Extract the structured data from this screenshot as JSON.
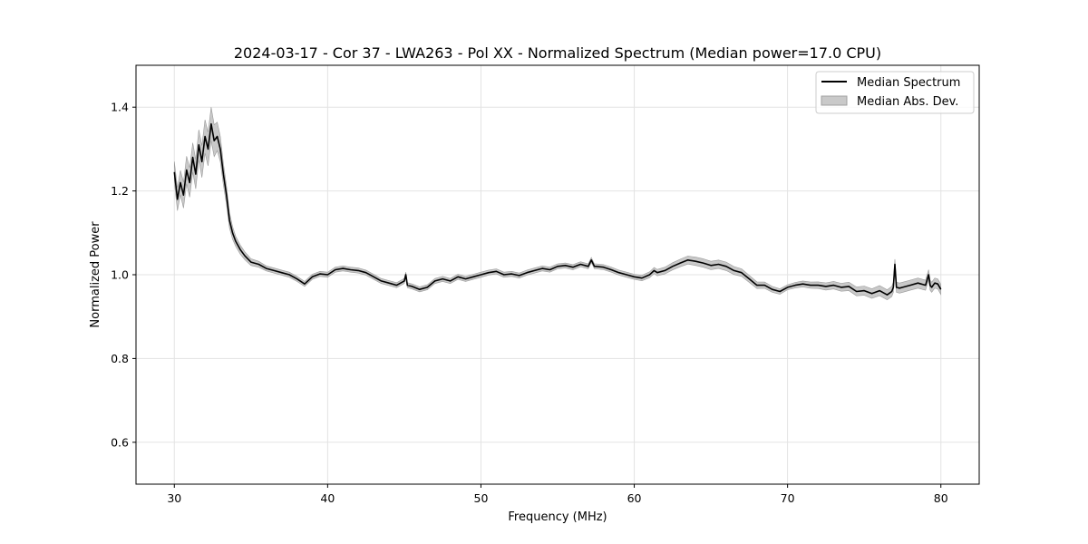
{
  "chart_data": {
    "type": "line",
    "title": "2024-03-17 - Cor 37 - LWA263 - Pol XX - Normalized Spectrum (Median power=17.0 CPU)",
    "xlabel": "Frequency (MHz)",
    "ylabel": "Normalized Power",
    "xlim": [
      27.5,
      82.5
    ],
    "ylim": [
      0.5,
      1.5
    ],
    "xticks": [
      30,
      40,
      50,
      60,
      70,
      80
    ],
    "yticks": [
      0.6,
      0.8,
      1.0,
      1.2,
      1.4
    ],
    "xtick_labels": [
      "30",
      "40",
      "50",
      "60",
      "70",
      "80"
    ],
    "ytick_labels": [
      "0.6",
      "0.8",
      "1.0",
      "1.2",
      "1.4"
    ],
    "grid": true,
    "legend_position": "top-right",
    "legend": [
      "Median Spectrum",
      "Median Abs. Dev."
    ],
    "series": [
      {
        "name": "Median Spectrum",
        "color": "#000000",
        "x": [
          30.0,
          30.2,
          30.4,
          30.6,
          30.8,
          31.0,
          31.2,
          31.4,
          31.6,
          31.8,
          32.0,
          32.2,
          32.4,
          32.6,
          32.8,
          33.0,
          33.2,
          33.4,
          33.6,
          33.8,
          34.0,
          34.3,
          34.6,
          35.0,
          35.5,
          36.0,
          36.5,
          37.0,
          37.5,
          38.0,
          38.5,
          39.0,
          39.5,
          40.0,
          40.5,
          41.0,
          41.5,
          42.0,
          42.5,
          43.0,
          43.5,
          44.0,
          44.5,
          45.0,
          45.1,
          45.2,
          45.5,
          46.0,
          46.5,
          47.0,
          47.5,
          48.0,
          48.5,
          49.0,
          49.5,
          50.0,
          50.5,
          51.0,
          51.5,
          52.0,
          52.5,
          53.0,
          53.5,
          54.0,
          54.5,
          55.0,
          55.5,
          56.0,
          56.5,
          57.0,
          57.2,
          57.4,
          57.5,
          58.0,
          58.5,
          59.0,
          59.5,
          60.0,
          60.5,
          61.0,
          61.3,
          61.5,
          62.0,
          62.5,
          63.0,
          63.5,
          64.0,
          64.5,
          65.0,
          65.5,
          66.0,
          66.5,
          67.0,
          67.5,
          68.0,
          68.5,
          69.0,
          69.5,
          70.0,
          70.5,
          71.0,
          71.5,
          72.0,
          72.5,
          73.0,
          73.5,
          74.0,
          74.5,
          75.0,
          75.5,
          76.0,
          76.5,
          76.8,
          76.9,
          77.0,
          77.1,
          77.3,
          77.5,
          78.0,
          78.5,
          79.0,
          79.2,
          79.3,
          79.4,
          79.6,
          79.8,
          80.0
        ],
        "y": [
          1.245,
          1.18,
          1.22,
          1.19,
          1.25,
          1.22,
          1.28,
          1.24,
          1.31,
          1.27,
          1.33,
          1.3,
          1.36,
          1.32,
          1.33,
          1.3,
          1.24,
          1.19,
          1.13,
          1.1,
          1.08,
          1.06,
          1.045,
          1.03,
          1.025,
          1.015,
          1.01,
          1.005,
          1.0,
          0.99,
          0.978,
          0.995,
          1.002,
          1.0,
          1.012,
          1.015,
          1.012,
          1.01,
          1.005,
          0.995,
          0.985,
          0.98,
          0.975,
          0.985,
          1.0,
          0.975,
          0.972,
          0.965,
          0.97,
          0.985,
          0.99,
          0.985,
          0.995,
          0.99,
          0.995,
          1.0,
          1.005,
          1.008,
          1.0,
          1.002,
          0.998,
          1.005,
          1.01,
          1.015,
          1.012,
          1.02,
          1.022,
          1.018,
          1.025,
          1.02,
          1.035,
          1.02,
          1.02,
          1.018,
          1.012,
          1.005,
          1.0,
          0.995,
          0.992,
          1.0,
          1.01,
          1.005,
          1.01,
          1.02,
          1.028,
          1.035,
          1.032,
          1.028,
          1.022,
          1.025,
          1.02,
          1.01,
          1.005,
          0.99,
          0.975,
          0.975,
          0.965,
          0.96,
          0.97,
          0.975,
          0.978,
          0.975,
          0.975,
          0.972,
          0.975,
          0.97,
          0.972,
          0.96,
          0.962,
          0.955,
          0.962,
          0.952,
          0.96,
          0.97,
          1.025,
          0.97,
          0.968,
          0.97,
          0.975,
          0.98,
          0.975,
          1.0,
          0.975,
          0.97,
          0.98,
          0.978,
          0.965
        ]
      }
    ],
    "band": {
      "name": "Median Abs. Dev.",
      "color": "#bfbfbf",
      "x": [
        30.0,
        30.5,
        31.0,
        31.5,
        32.0,
        32.5,
        33.0,
        33.5,
        34.0,
        35.0,
        36.0,
        40.0,
        50.0,
        60.0,
        62.0,
        64.0,
        66.0,
        68.0,
        70.0,
        74.0,
        76.0,
        77.0,
        78.0,
        79.0,
        80.0
      ],
      "dev": [
        0.025,
        0.03,
        0.035,
        0.035,
        0.04,
        0.04,
        0.03,
        0.02,
        0.012,
        0.008,
        0.006,
        0.006,
        0.006,
        0.006,
        0.008,
        0.01,
        0.01,
        0.008,
        0.006,
        0.01,
        0.012,
        0.012,
        0.012,
        0.012,
        0.012
      ]
    }
  }
}
